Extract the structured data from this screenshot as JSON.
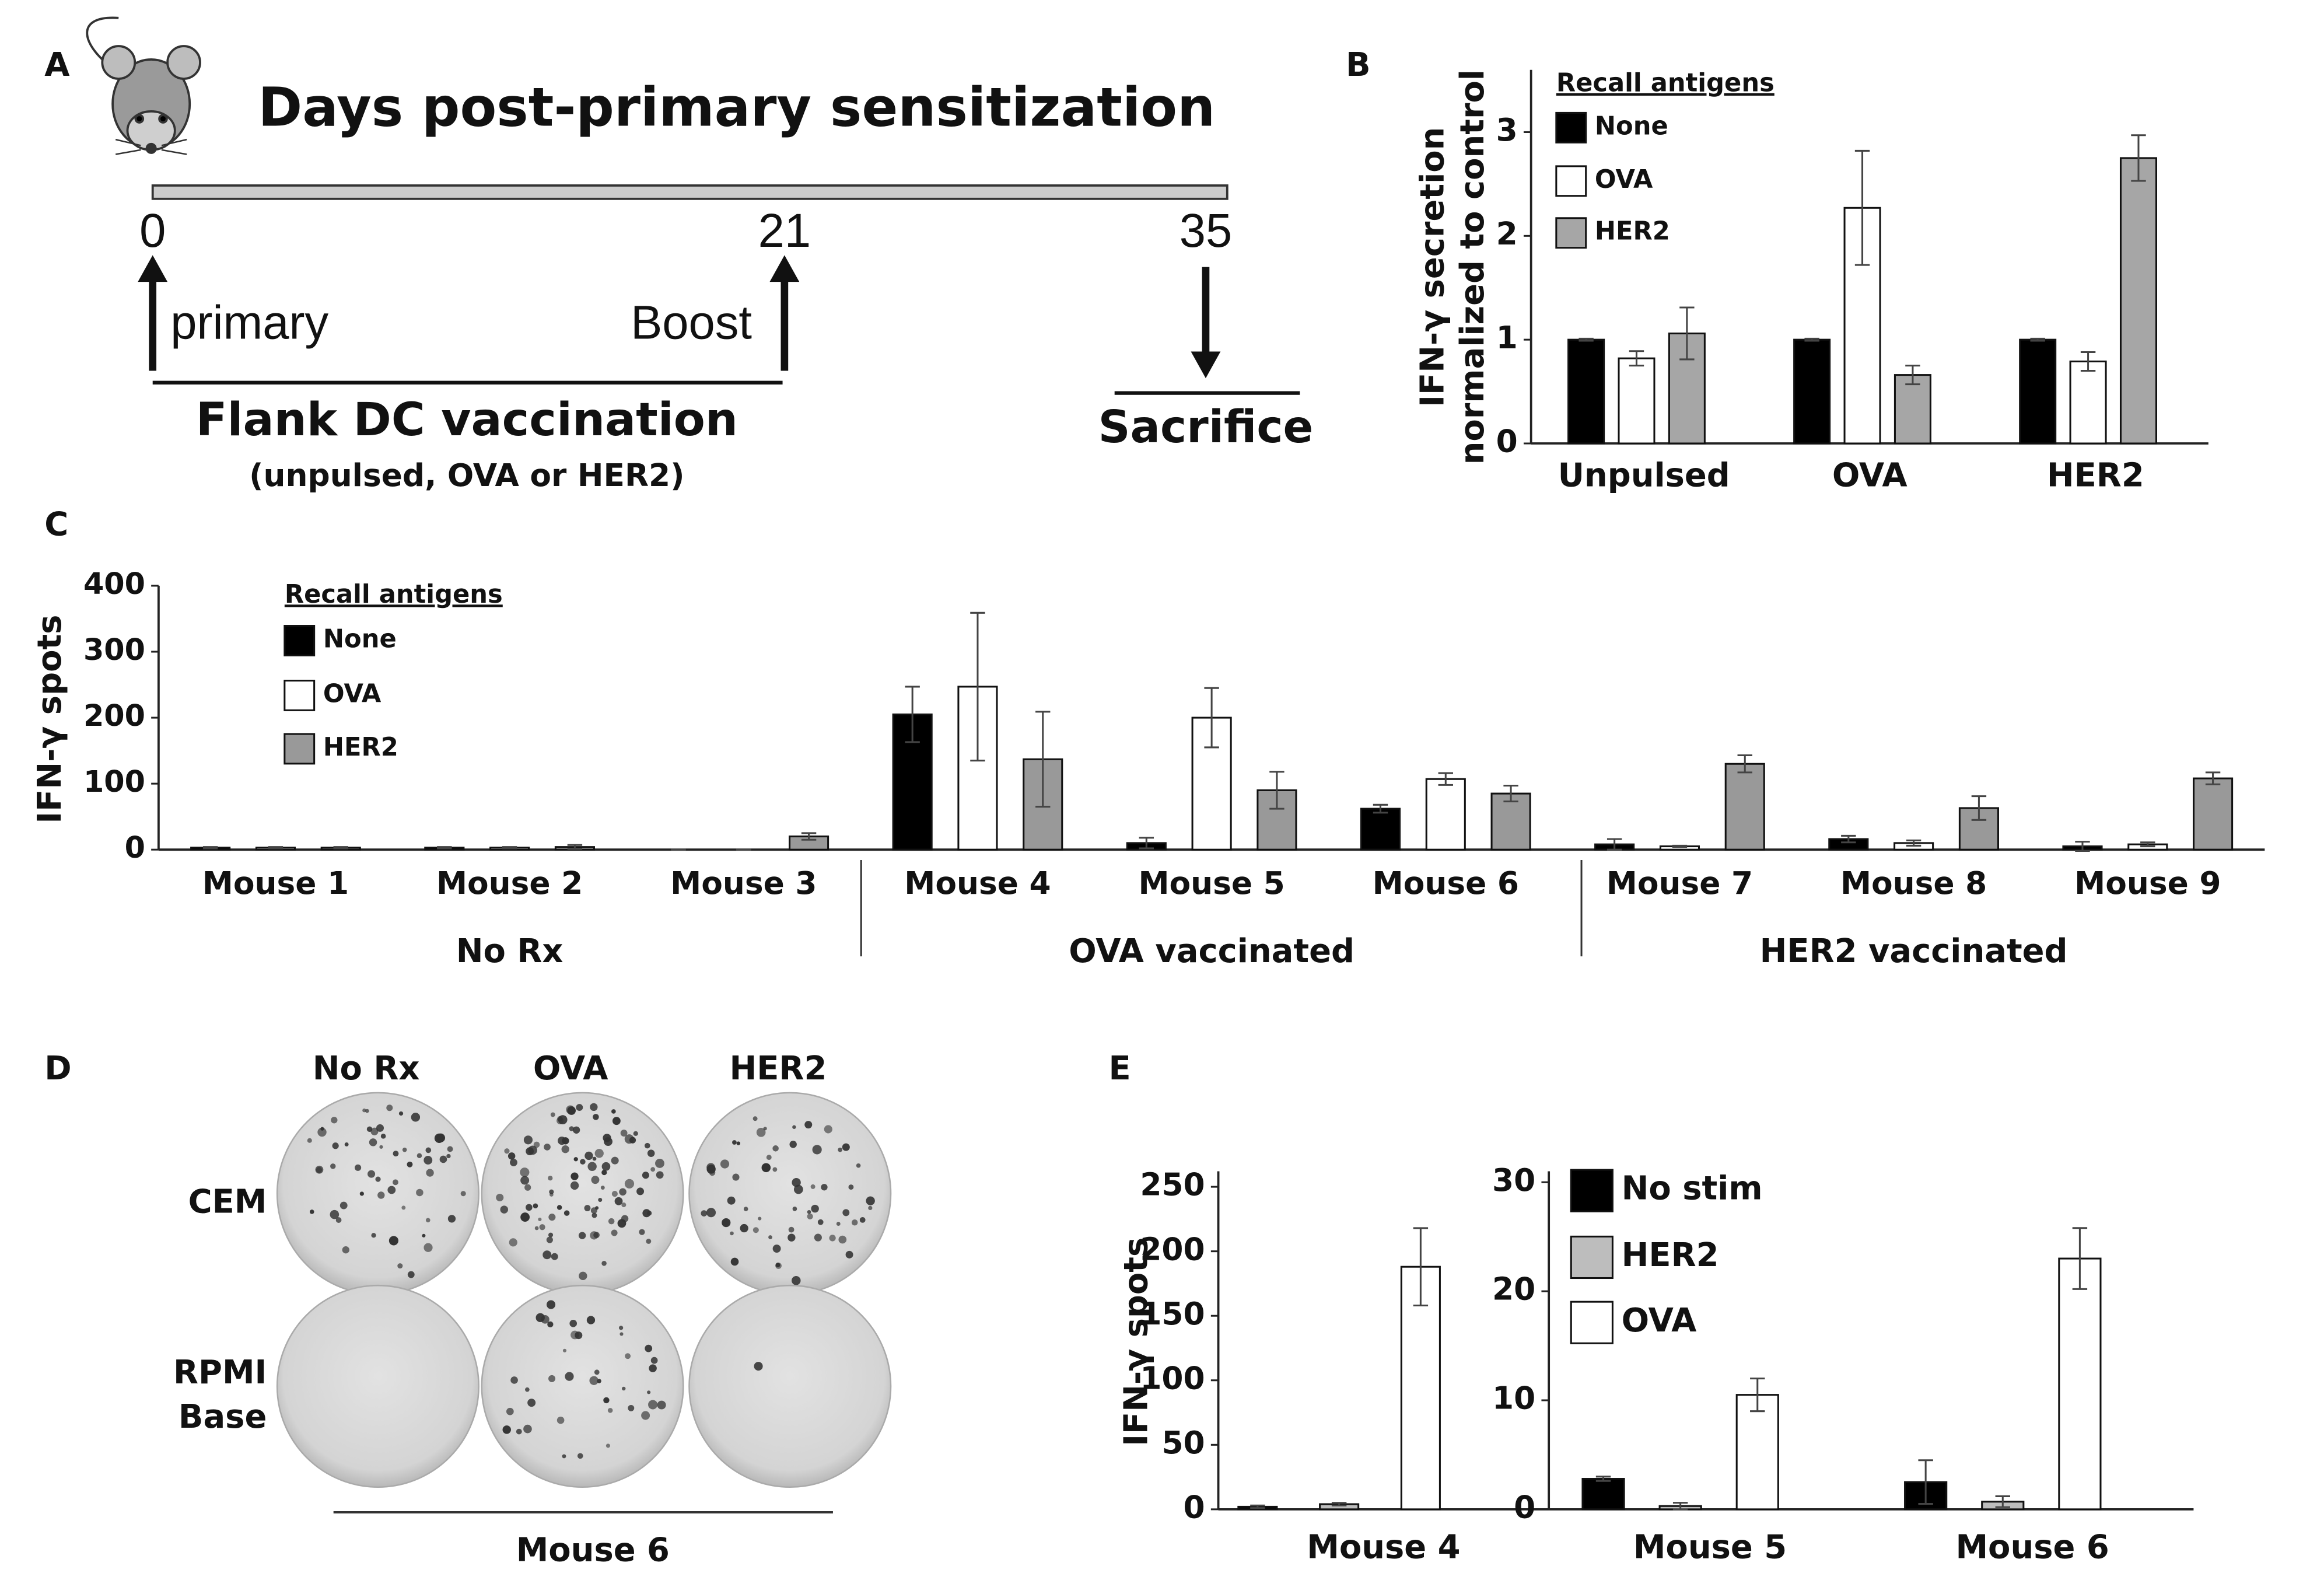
{
  "panel_labels": [
    "A",
    "B",
    "C",
    "D",
    "E"
  ],
  "timeline": {
    "title": "Days post-primary sensitization",
    "days": [
      0,
      21,
      35
    ],
    "events": [
      "primary",
      "Boost",
      "Sacrifice"
    ],
    "caption": "Flank DC vaccination",
    "subcaption": "(unpulsed, OVA or HER2)"
  },
  "chart_data": [
    {
      "type": "bar",
      "ylabel": [
        "IFN-γ secretion",
        "normalized to control"
      ],
      "legend_title": "Recall antigens",
      "categories": [
        "Unpulsed",
        "OVA",
        "HER2"
      ],
      "series": [
        {
          "name": "None",
          "color": "#000000",
          "values": [
            1,
            1,
            1
          ],
          "errors": [
            0.01,
            0.01,
            0.01
          ]
        },
        {
          "name": "OVA",
          "color": "#ffffff",
          "values": [
            0.82,
            2.27,
            0.79
          ],
          "errors": [
            0.07,
            0.55,
            0.09
          ]
        },
        {
          "name": "HER2",
          "color": "#a6a6a6",
          "values": [
            1.06,
            0.66,
            2.75
          ],
          "errors": [
            0.25,
            0.09,
            0.22
          ]
        }
      ],
      "ylim": [
        0,
        3.6
      ],
      "yticks": [
        0,
        1,
        2,
        3
      ]
    },
    {
      "type": "bar",
      "ylabel": [
        "IFN-γ spots"
      ],
      "legend_title": "Recall antigens",
      "categories": [
        "Mouse 1",
        "Mouse 2",
        "Mouse 3",
        "Mouse 4",
        "Mouse 5",
        "Mouse 6",
        "Mouse 7",
        "Mouse 8",
        "Mouse 9"
      ],
      "groups": [
        "No Rx",
        "OVA vaccinated",
        "HER2 vaccinated"
      ],
      "series": [
        {
          "name": "None",
          "color": "#000000",
          "values": [
            3,
            3,
            0,
            205,
            10,
            62,
            8,
            16,
            5
          ],
          "errors": [
            1,
            1,
            0,
            42,
            8,
            6,
            8,
            5,
            7
          ]
        },
        {
          "name": "OVA",
          "color": "#ffffff",
          "values": [
            3,
            3,
            0,
            247,
            200,
            107,
            5,
            10,
            8
          ],
          "errors": [
            1,
            1,
            0,
            112,
            45,
            9,
            1,
            4,
            3
          ]
        },
        {
          "name": "HER2",
          "color": "#999999",
          "values": [
            3,
            4,
            20,
            137,
            90,
            85,
            130,
            63,
            108
          ],
          "errors": [
            1,
            3,
            5,
            72,
            28,
            12,
            13,
            18,
            9
          ]
        }
      ],
      "ylim": [
        0,
        400
      ],
      "yticks": [
        0,
        100,
        200,
        300,
        400
      ]
    },
    {
      "type": "bar",
      "ylabel": [
        "IFN-γ spots"
      ],
      "categories": [
        "Mouse 4"
      ],
      "series": [
        {
          "color": "#000000",
          "values": [
            2
          ],
          "errors": [
            1
          ]
        },
        {
          "color": "#bdbdbd",
          "values": [
            4
          ],
          "errors": [
            1
          ]
        },
        {
          "color": "#ffffff",
          "values": [
            188
          ],
          "errors": [
            30
          ]
        }
      ],
      "ylim": [
        0,
        262
      ],
      "yticks": [
        0,
        50,
        100,
        150,
        200,
        250
      ]
    },
    {
      "type": "bar",
      "categories": [
        "Mouse 5",
        "Mouse 6"
      ],
      "series": [
        {
          "name": "No stim",
          "color": "#000000",
          "values": [
            2.8,
            2.5
          ],
          "errors": [
            0.2,
            2
          ]
        },
        {
          "name": "HER2",
          "color": "#bdbdbd",
          "values": [
            0.3,
            0.7
          ],
          "errors": [
            0.3,
            0.5
          ]
        },
        {
          "name": "OVA",
          "color": "#ffffff",
          "values": [
            10.5,
            23
          ],
          "errors": [
            1.5,
            2.8
          ]
        }
      ],
      "ylim": [
        0,
        31
      ],
      "yticks": [
        0,
        10,
        20,
        30
      ]
    }
  ],
  "elispot": {
    "columns": [
      "No Rx",
      "OVA",
      "HER2"
    ],
    "rows": [
      [
        "CEM"
      ],
      [
        "RPMI",
        "Base"
      ]
    ],
    "caption": "Mouse 6"
  }
}
